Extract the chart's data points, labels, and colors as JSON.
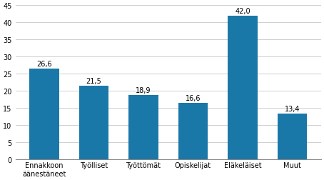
{
  "categories": [
    "Ennakkoon\näänestäneet",
    "Työlliset",
    "Työttömät",
    "Opiskelijat",
    "Eläkeläiset",
    "Muut"
  ],
  "values": [
    26.6,
    21.5,
    18.9,
    16.6,
    42.0,
    13.4
  ],
  "value_labels": [
    "26,6",
    "21,5",
    "18,9",
    "16,6",
    "42,0",
    "13,4"
  ],
  "ylim": [
    0,
    45
  ],
  "yticks": [
    0,
    5,
    10,
    15,
    20,
    25,
    30,
    35,
    40,
    45
  ],
  "bar_width": 0.6,
  "label_fontsize": 7.0,
  "tick_fontsize": 7.0,
  "value_label_fontsize": 7.0,
  "background_color": "#ffffff",
  "grid_color": "#c8c8c8",
  "bar_color": "#1a78a8"
}
